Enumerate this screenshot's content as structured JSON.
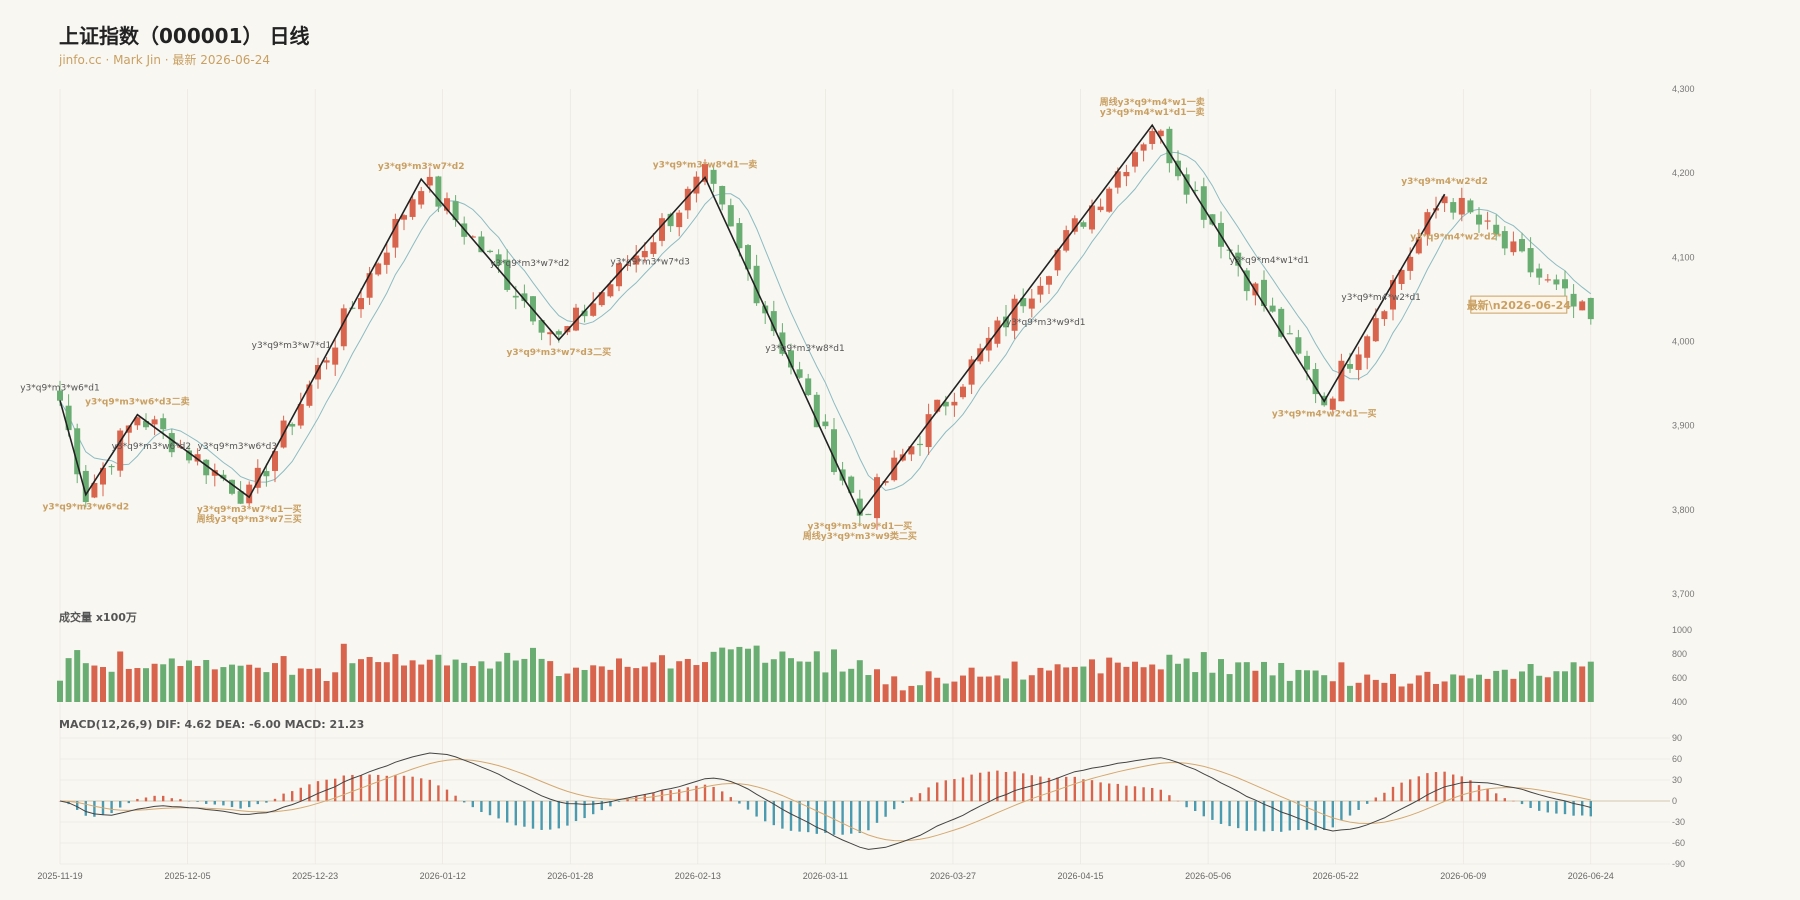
{
  "header": {
    "title": "上证指数（000001） 日线",
    "subtitle": "jinfo.cc · Mark Jin · 最新 2026-06-24"
  },
  "colors": {
    "up": "#d9644d",
    "down": "#6aad73",
    "ma": "#8bbcc3",
    "zigzag": "#222222",
    "gold": "#c9a063",
    "macd_pos": "#d9644d",
    "macd_neg": "#4a9ab0",
    "dif": "#444444",
    "dea": "#d4a870",
    "grid": "#e6e3dc"
  },
  "chart_data": [
    {
      "type": "candlestick",
      "panel": "price",
      "x_dates": [
        "2025-11-19",
        "2025-12-05",
        "2025-12-23",
        "2026-01-12",
        "2026-01-28",
        "2026-02-13",
        "2026-03-11",
        "2026-03-27",
        "2026-04-15",
        "2026-05-06",
        "2026-05-22",
        "2026-06-09",
        "2026-06-24"
      ],
      "y_ticks": [
        "4,300",
        "4,200",
        "4,100",
        "4,000",
        "3,900",
        "3,800",
        "3,700"
      ],
      "ylim": [
        3700,
        4300
      ],
      "num_bars": 179,
      "zigzag": [
        [
          0,
          3930
        ],
        [
          3,
          3818
        ],
        [
          9,
          3913
        ],
        [
          22,
          3815
        ],
        [
          42,
          4193
        ],
        [
          58,
          4002
        ],
        [
          75,
          4195
        ],
        [
          93,
          3795
        ],
        [
          127,
          4257
        ],
        [
          147,
          3929
        ],
        [
          161,
          4175
        ]
      ],
      "latest_label": "最新\\n2026-06-24",
      "annotations": [
        {
          "bar": 0,
          "price": 3930,
          "text": "y3*q9*m3*w6*d1",
          "style": "gray",
          "pos": "above"
        },
        {
          "bar": 9,
          "price": 3913,
          "text": "y3*q9*m3*w6*d3二卖",
          "style": "gold",
          "pos": "above"
        },
        {
          "bar": 3,
          "price": 3818,
          "text": "y3*q9*m3*w6*d2",
          "style": "gold",
          "pos": "below"
        },
        {
          "bar": 6,
          "price": 3876,
          "text": "y3*q9*m3*w6*d2",
          "style": "gray",
          "pos": "right"
        },
        {
          "bar": 16,
          "price": 3876,
          "text": "y3*q9*m3*w6*d3",
          "style": "gray",
          "pos": "right"
        },
        {
          "bar": 22,
          "price": 3815,
          "text": "y3*q9*m3*w7*d1一买",
          "style": "gold",
          "pos": "below"
        },
        {
          "bar": 22,
          "price": 3815,
          "text": "周线y3*q9*m3*w7三买",
          "style": "gold",
          "pos": "below2"
        },
        {
          "bar": 32,
          "price": 3996,
          "text": "y3*q9*m3*w7*d1",
          "style": "gray",
          "pos": "left"
        },
        {
          "bar": 42,
          "price": 4193,
          "text": "y3*q9*m3*w7*d2",
          "style": "gold",
          "pos": "above"
        },
        {
          "bar": 50,
          "price": 4093,
          "text": "y3*q9*m3*w7*d2",
          "style": "gray",
          "pos": "right"
        },
        {
          "bar": 58,
          "price": 4002,
          "text": "y3*q9*m3*w7*d3二买",
          "style": "gold",
          "pos": "below"
        },
        {
          "bar": 64,
          "price": 4095,
          "text": "y3*q9*m3*w7*d3",
          "style": "gray",
          "pos": "right"
        },
        {
          "bar": 75,
          "price": 4195,
          "text": "y3*q9*m3*w8*d1一卖",
          "style": "gold",
          "pos": "above"
        },
        {
          "bar": 82,
          "price": 3992,
          "text": "y3*q9*m3*w8*d1",
          "style": "gray",
          "pos": "right"
        },
        {
          "bar": 93,
          "price": 3795,
          "text": "y3*q9*m3*w9*d1一买",
          "style": "gold",
          "pos": "below"
        },
        {
          "bar": 93,
          "price": 3795,
          "text": "周线y3*q9*m3*w9类二买",
          "style": "gold",
          "pos": "below2"
        },
        {
          "bar": 110,
          "price": 4023,
          "text": "y3*q9*m3*w9*d1",
          "style": "gray",
          "pos": "right"
        },
        {
          "bar": 127,
          "price": 4257,
          "text": "y3*q9*m4*w1*d1一卖",
          "style": "gold",
          "pos": "above"
        },
        {
          "bar": 127,
          "price": 4257,
          "text": "周线y3*q9*m4*w1一卖",
          "style": "gold",
          "pos": "above2"
        },
        {
          "bar": 136,
          "price": 4097,
          "text": "y3*q9*m4*w1*d1",
          "style": "gray",
          "pos": "right"
        },
        {
          "bar": 147,
          "price": 3929,
          "text": "y3*q9*m4*w2*d1一买",
          "style": "gold",
          "pos": "below"
        },
        {
          "bar": 149,
          "price": 4053,
          "text": "y3*q9*m4*w2*d1",
          "style": "gray",
          "pos": "right"
        },
        {
          "bar": 161,
          "price": 4175,
          "text": "y3*q9*m4*w2*d2",
          "style": "gold",
          "pos": "above"
        },
        {
          "bar": 157,
          "price": 4125,
          "text": "y3*q9*m4*w2*d2*",
          "style": "gold",
          "pos": "right"
        }
      ]
    },
    {
      "type": "bar",
      "panel": "volume",
      "title": "成交量 x100万",
      "y_ticks": [
        "1000",
        "800",
        "600",
        "400"
      ],
      "ylim": [
        400,
        1000
      ]
    },
    {
      "type": "macd",
      "panel": "macd",
      "title": "MACD(12,26,9) DIF: 4.62 DEA: -6.00 MACD: 21.23",
      "y_ticks": [
        "90",
        "60",
        "30",
        "0",
        "-30",
        "-60",
        "-90"
      ],
      "ylim": [
        -90,
        90
      ]
    }
  ]
}
